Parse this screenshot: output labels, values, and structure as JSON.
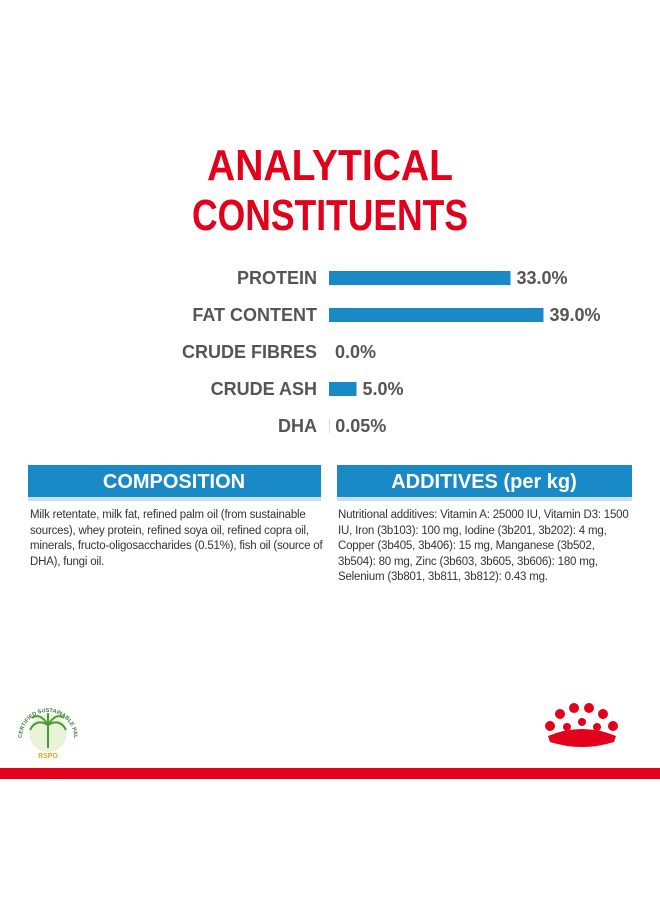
{
  "chart_data": {
    "type": "bar",
    "title_lines": [
      "ANALYTICAL",
      "CONSTITUENTS"
    ],
    "categories": [
      "PROTEIN",
      "FAT CONTENT",
      "CRUDE FIBRES",
      "CRUDE ASH",
      "DHA"
    ],
    "values": [
      33,
      39,
      0,
      5,
      0.05
    ],
    "value_labels": [
      "33.0%",
      "39.0%",
      "0.0%",
      "5.0%",
      "0.05%"
    ],
    "color": "#1a8ac6"
  },
  "composition": {
    "heading": "COMPOSITION",
    "text": "Milk retentate, milk fat, refined palm oil (from sustainable sources), whey protein, refined soya oil, refined copra oil, minerals, fructo-oligosaccharides (0.51%), fish oil (source of DHA), fungi oil."
  },
  "additives": {
    "heading": "ADDITIVES (per kg)",
    "text": "Nutritional additives: Vitamin A: 25000 IU, Vitamin D3: 1500 IU, Iron (3b103): 100 mg, Iodine (3b201, 3b202): 4 mg, Copper (3b405, 3b406): 15 mg, Manganese (3b502, 3b504): 80 mg, Zinc (3b603, 3b605, 3b606): 180 mg, Selenium (3b801, 3b811, 3b812): 0.43 mg."
  },
  "rspo": {
    "arc_text": "CERTIFIED SUSTAINABLE PALM OIL",
    "label": "RSPO"
  }
}
